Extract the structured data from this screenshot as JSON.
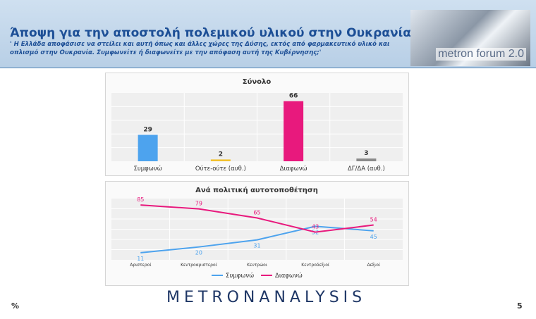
{
  "header": {
    "title": "Άποψη για την αποστολή πολεμικού υλικού στην Ουκρανία",
    "subtitle": "' Η Ελλάδα αποφάσισε να στείλει και αυτή όπως και άλλες χώρες της Δύσης, εκτός από φαρμακευτικό υλικό και οπλισμό στην Ουκρανία. Συμφωνείτε ή διαφωνείτε με την απόφαση αυτή της Κυβέρνησης;'",
    "brand": "metron forum 2.0"
  },
  "footer": {
    "unit": "%",
    "logo_left": "METRON",
    "logo_right": "ANALYSIS",
    "page": "5"
  },
  "colors": {
    "header_title": "#1d4f96",
    "agree": "#4da3ee",
    "neutral": "#f2c12e",
    "disagree": "#e8197d",
    "dk": "#8a8a8a"
  },
  "chart_data": [
    {
      "type": "bar",
      "title": "Σύνολο",
      "categories": [
        "Συμφωνώ",
        "Ούτε-ούτε (αυθ.)",
        "Διαφωνώ",
        "ΔΓ/ΔΑ (αυθ.)"
      ],
      "values": [
        29,
        2,
        66,
        3
      ],
      "colors": [
        "#4da3ee",
        "#f2c12e",
        "#e8197d",
        "#8a8a8a"
      ],
      "ylim": [
        0,
        75
      ],
      "grid": true
    },
    {
      "type": "line",
      "title": "Ανά πολιτική αυτοτοποθέτηση",
      "categories": [
        "Αριστεροί",
        "Κεντροαριστεροί",
        "Κεντρώοι",
        "Κεντροδεξιοί",
        "Δεξιοί"
      ],
      "series": [
        {
          "name": "Συμφωνώ",
          "values": [
            11,
            20,
            31,
            52,
            45
          ],
          "color": "#4da3ee"
        },
        {
          "name": "Διαφωνώ",
          "values": [
            85,
            79,
            65,
            43,
            54
          ],
          "color": "#e8197d"
        }
      ],
      "ylim": [
        0,
        95
      ],
      "legend": "bottom",
      "grid": true
    }
  ]
}
